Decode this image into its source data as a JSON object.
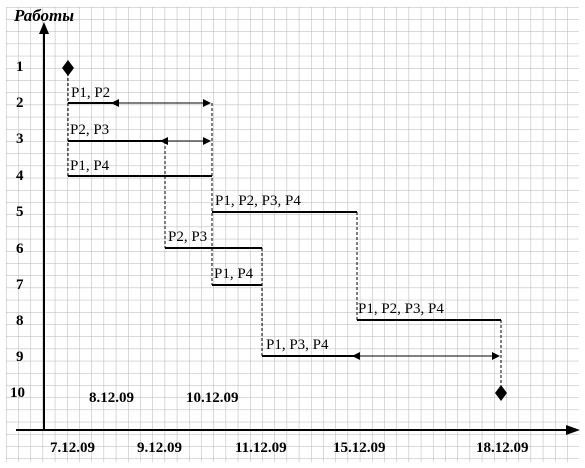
{
  "diagram": {
    "y_axis_title": "Работы",
    "rows": [
      "1",
      "2",
      "3",
      "4",
      "5",
      "6",
      "7",
      "8",
      "9",
      "10"
    ],
    "x_ticks": [
      "7.12.09",
      "9.12.09",
      "11.12.09",
      "15.12.09",
      "18.12.09"
    ],
    "inner_dates": [
      "8.12.09",
      "10.12.09"
    ],
    "tasks": [
      {
        "row": 2,
        "label": "P1, P2"
      },
      {
        "row": 3,
        "label": "P2, P3"
      },
      {
        "row": 4,
        "label": "P1, P4"
      },
      {
        "row": 5,
        "label": "P1, P2, P3, P4"
      },
      {
        "row": 6,
        "label": "P2, P3"
      },
      {
        "row": 7,
        "label": "P1, P4"
      },
      {
        "row": 8,
        "label": "P1, P2, P3, P4"
      },
      {
        "row": 9,
        "label": "P1, P3, P4"
      }
    ]
  }
}
